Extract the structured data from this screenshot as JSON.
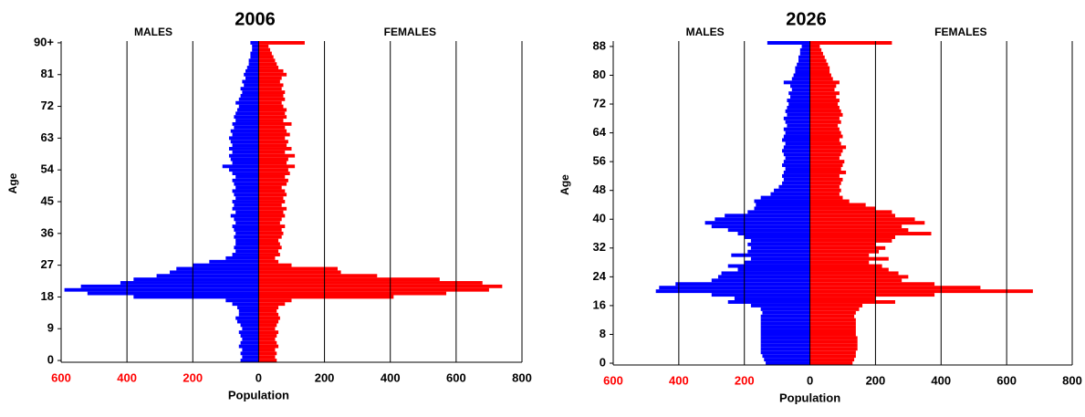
{
  "chart_data": [
    {
      "type": "pyramid",
      "title": "2006",
      "xlabel": "Population",
      "ylabel": "Age",
      "categories": [
        0,
        1,
        2,
        3,
        4,
        5,
        6,
        7,
        8,
        9,
        10,
        11,
        12,
        13,
        14,
        15,
        16,
        17,
        18,
        19,
        20,
        21,
        22,
        23,
        24,
        25,
        26,
        27,
        28,
        29,
        30,
        31,
        32,
        33,
        34,
        35,
        36,
        37,
        38,
        39,
        40,
        41,
        42,
        43,
        44,
        45,
        46,
        47,
        48,
        49,
        50,
        51,
        52,
        53,
        54,
        55,
        56,
        57,
        58,
        59,
        60,
        61,
        62,
        63,
        64,
        65,
        66,
        67,
        68,
        69,
        70,
        71,
        72,
        73,
        74,
        75,
        76,
        77,
        78,
        79,
        80,
        81,
        82,
        83,
        84,
        85,
        86,
        87,
        88,
        89,
        90
      ],
      "series": [
        {
          "name": "MALES",
          "color": "#0000ff",
          "values": [
            -55,
            -50,
            -55,
            -50,
            -60,
            -55,
            -50,
            -55,
            -60,
            -50,
            -55,
            -65,
            -70,
            -60,
            -60,
            -65,
            -80,
            -100,
            -380,
            -520,
            -590,
            -540,
            -420,
            -380,
            -310,
            -270,
            -250,
            -200,
            -150,
            -100,
            -80,
            -70,
            -75,
            -70,
            -70,
            -75,
            -70,
            -75,
            -80,
            -70,
            -75,
            -85,
            -70,
            -80,
            -75,
            -80,
            -70,
            -75,
            -80,
            -70,
            -75,
            -80,
            -70,
            -80,
            -90,
            -110,
            -80,
            -85,
            -90,
            -80,
            -90,
            -80,
            -85,
            -90,
            -80,
            -85,
            -75,
            -80,
            -70,
            -75,
            -70,
            -65,
            -60,
            -70,
            -60,
            -55,
            -50,
            -55,
            -45,
            -50,
            -40,
            -45,
            -40,
            -35,
            -30,
            -30,
            -25,
            -25,
            -20,
            -20,
            -25
          ]
        },
        {
          "name": "FEMALES",
          "color": "#ff0000",
          "values": [
            55,
            50,
            55,
            50,
            60,
            55,
            50,
            55,
            60,
            50,
            55,
            60,
            65,
            60,
            55,
            60,
            80,
            100,
            410,
            570,
            700,
            740,
            680,
            550,
            360,
            250,
            240,
            100,
            60,
            50,
            65,
            60,
            70,
            65,
            60,
            70,
            75,
            70,
            80,
            65,
            70,
            80,
            75,
            85,
            70,
            80,
            75,
            85,
            80,
            70,
            85,
            90,
            80,
            95,
            90,
            110,
            85,
            90,
            110,
            80,
            100,
            85,
            90,
            80,
            95,
            85,
            80,
            100,
            75,
            85,
            80,
            85,
            75,
            70,
            80,
            75,
            80,
            70,
            75,
            65,
            70,
            85,
            75,
            60,
            55,
            50,
            45,
            40,
            35,
            30,
            140
          ]
        }
      ],
      "xlim": [
        -600,
        800
      ],
      "xticks": [
        {
          "value": -600,
          "label": "600"
        },
        {
          "value": -400,
          "label": "400"
        },
        {
          "value": -200,
          "label": "200"
        },
        0,
        200,
        400,
        600,
        800
      ],
      "ylim": [
        -0.5,
        90.5
      ],
      "yticks": [
        0,
        9,
        18,
        27,
        36,
        45,
        54,
        63,
        72,
        81,
        {
          "value": 90,
          "label": "90+"
        }
      ],
      "negative_tick_color": "#ff0000",
      "grid": true
    },
    {
      "type": "pyramid",
      "title": "2026",
      "xlabel": "Population",
      "ylabel": "Age",
      "categories": [
        0,
        1,
        2,
        3,
        4,
        5,
        6,
        7,
        8,
        9,
        10,
        11,
        12,
        13,
        14,
        15,
        16,
        17,
        18,
        19,
        20,
        21,
        22,
        23,
        24,
        25,
        26,
        27,
        28,
        29,
        30,
        31,
        32,
        33,
        34,
        35,
        36,
        37,
        38,
        39,
        40,
        41,
        42,
        43,
        44,
        45,
        46,
        47,
        48,
        49,
        50,
        51,
        52,
        53,
        54,
        55,
        56,
        57,
        58,
        59,
        60,
        61,
        62,
        63,
        64,
        65,
        66,
        67,
        68,
        69,
        70,
        71,
        72,
        73,
        74,
        75,
        76,
        77,
        78,
        79,
        80,
        81,
        82,
        83,
        84,
        85,
        86,
        87,
        88,
        89
      ],
      "series": [
        {
          "name": "MALES",
          "color": "#0000ff",
          "values": [
            -135,
            -140,
            -145,
            -150,
            -150,
            -150,
            -150,
            -150,
            -150,
            -150,
            -150,
            -150,
            -150,
            -150,
            -145,
            -150,
            -180,
            -250,
            -230,
            -300,
            -470,
            -460,
            -410,
            -300,
            -280,
            -270,
            -220,
            -250,
            -200,
            -180,
            -240,
            -190,
            -180,
            -190,
            -180,
            -200,
            -220,
            -250,
            -300,
            -320,
            -290,
            -260,
            -190,
            -170,
            -165,
            -170,
            -150,
            -120,
            -110,
            -95,
            -85,
            -80,
            -85,
            -80,
            -75,
            -85,
            -80,
            -75,
            -80,
            -85,
            -80,
            -75,
            -85,
            -80,
            -75,
            -80,
            -70,
            -75,
            -80,
            -70,
            -75,
            -70,
            -65,
            -70,
            -60,
            -65,
            -55,
            -60,
            -80,
            -55,
            -50,
            -45,
            -45,
            -40,
            -35,
            -35,
            -30,
            -30,
            -25,
            -130
          ]
        },
        {
          "name": "FEMALES",
          "color": "#ff0000",
          "values": [
            130,
            135,
            140,
            140,
            145,
            145,
            145,
            145,
            140,
            140,
            140,
            140,
            140,
            135,
            140,
            150,
            160,
            260,
            200,
            380,
            680,
            520,
            380,
            280,
            300,
            270,
            240,
            220,
            180,
            240,
            180,
            210,
            230,
            200,
            250,
            260,
            370,
            300,
            280,
            350,
            320,
            260,
            250,
            200,
            170,
            120,
            100,
            90,
            95,
            90,
            95,
            100,
            90,
            110,
            95,
            100,
            105,
            90,
            95,
            100,
            110,
            95,
            90,
            100,
            95,
            90,
            85,
            95,
            90,
            100,
            95,
            90,
            85,
            90,
            80,
            90,
            75,
            80,
            90,
            70,
            65,
            60,
            60,
            55,
            50,
            45,
            40,
            35,
            30,
            250
          ]
        }
      ],
      "xlim": [
        -600,
        800
      ],
      "xticks": [
        {
          "value": -600,
          "label": "600"
        },
        {
          "value": -400,
          "label": "400"
        },
        {
          "value": -200,
          "label": "200"
        },
        0,
        200,
        400,
        600,
        800
      ],
      "ylim": [
        -0.5,
        89.5
      ],
      "yticks": [
        0,
        8,
        16,
        24,
        32,
        40,
        48,
        56,
        64,
        72,
        80,
        88
      ],
      "negative_tick_color": "#ff0000",
      "grid": true
    }
  ]
}
